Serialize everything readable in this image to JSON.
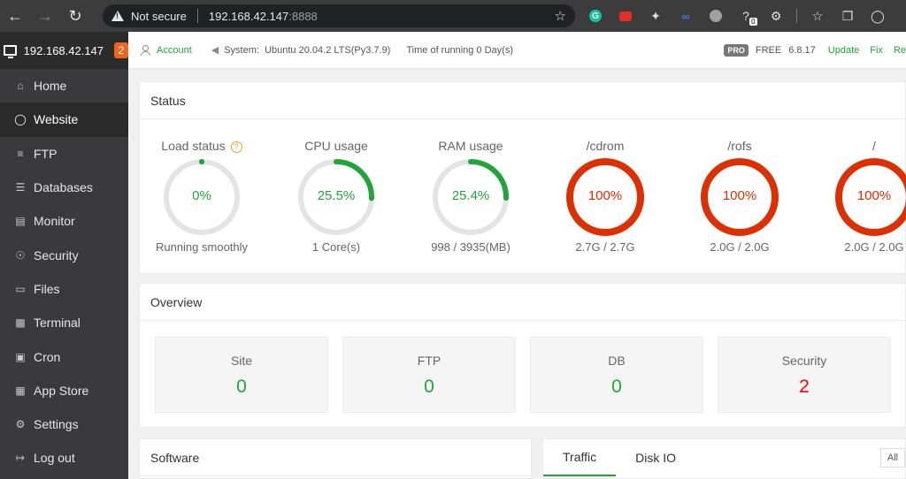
{
  "browser": {
    "security_label": "Not secure",
    "url_host": "192.168.42.147",
    "url_port": ":8888",
    "ext_badge": "0"
  },
  "sidebar": {
    "server": "192.168.42.147",
    "alert_count": "2",
    "items": [
      {
        "label": "Home",
        "icon": "home-icon"
      },
      {
        "label": "Website",
        "icon": "globe-icon"
      },
      {
        "label": "FTP",
        "icon": "ftp-icon"
      },
      {
        "label": "Databases",
        "icon": "database-icon"
      },
      {
        "label": "Monitor",
        "icon": "monitor-icon"
      },
      {
        "label": "Security",
        "icon": "shield-icon"
      },
      {
        "label": "Files",
        "icon": "folder-icon"
      },
      {
        "label": "Terminal",
        "icon": "terminal-icon"
      },
      {
        "label": "Cron",
        "icon": "calendar-icon"
      },
      {
        "label": "App Store",
        "icon": "grid-icon"
      },
      {
        "label": "Settings",
        "icon": "gear-icon"
      },
      {
        "label": "Log out",
        "icon": "logout-icon"
      }
    ],
    "active_index": 1
  },
  "topbar": {
    "account": "Account",
    "system_label": "System:",
    "system_value": "Ubuntu 20.04.2 LTS(Py3.7.9)",
    "running": "Time of running 0 Day(s)",
    "pro_badge": "PRO",
    "plan": "FREE",
    "version": "6.8.17",
    "links": [
      "Update",
      "Fix",
      "Re"
    ]
  },
  "status": {
    "title": "Status",
    "gauges": [
      {
        "name": "Load status",
        "value": "0%",
        "sub": "Running smoothly",
        "percent": 0,
        "color": "#20a53a",
        "help": "?"
      },
      {
        "name": "CPU usage",
        "value": "25.5%",
        "sub": "1 Core(s)",
        "percent": 25.5,
        "color": "#20a53a"
      },
      {
        "name": "RAM usage",
        "value": "25.4%",
        "sub": "998 / 3935(MB)",
        "percent": 25.4,
        "color": "#20a53a"
      },
      {
        "name": "/cdrom",
        "value": "100%",
        "sub": "2.7G / 2.7G",
        "percent": 100,
        "color": "#dd2f00"
      },
      {
        "name": "/rofs",
        "value": "100%",
        "sub": "2.0G / 2.0G",
        "percent": 100,
        "color": "#dd2f00"
      },
      {
        "name": "/",
        "value": "100%",
        "sub": "2.0G / 2.0G",
        "percent": 100,
        "color": "#dd2f00"
      }
    ]
  },
  "overview": {
    "title": "Overview",
    "cards": [
      {
        "label": "Site",
        "value": "0"
      },
      {
        "label": "FTP",
        "value": "0"
      },
      {
        "label": "DB",
        "value": "0"
      },
      {
        "label": "Security",
        "value": "2",
        "alert": true
      }
    ]
  },
  "software": {
    "title": "Software"
  },
  "traffic": {
    "tabs": [
      "Traffic",
      "Disk IO"
    ],
    "filter": "All"
  }
}
